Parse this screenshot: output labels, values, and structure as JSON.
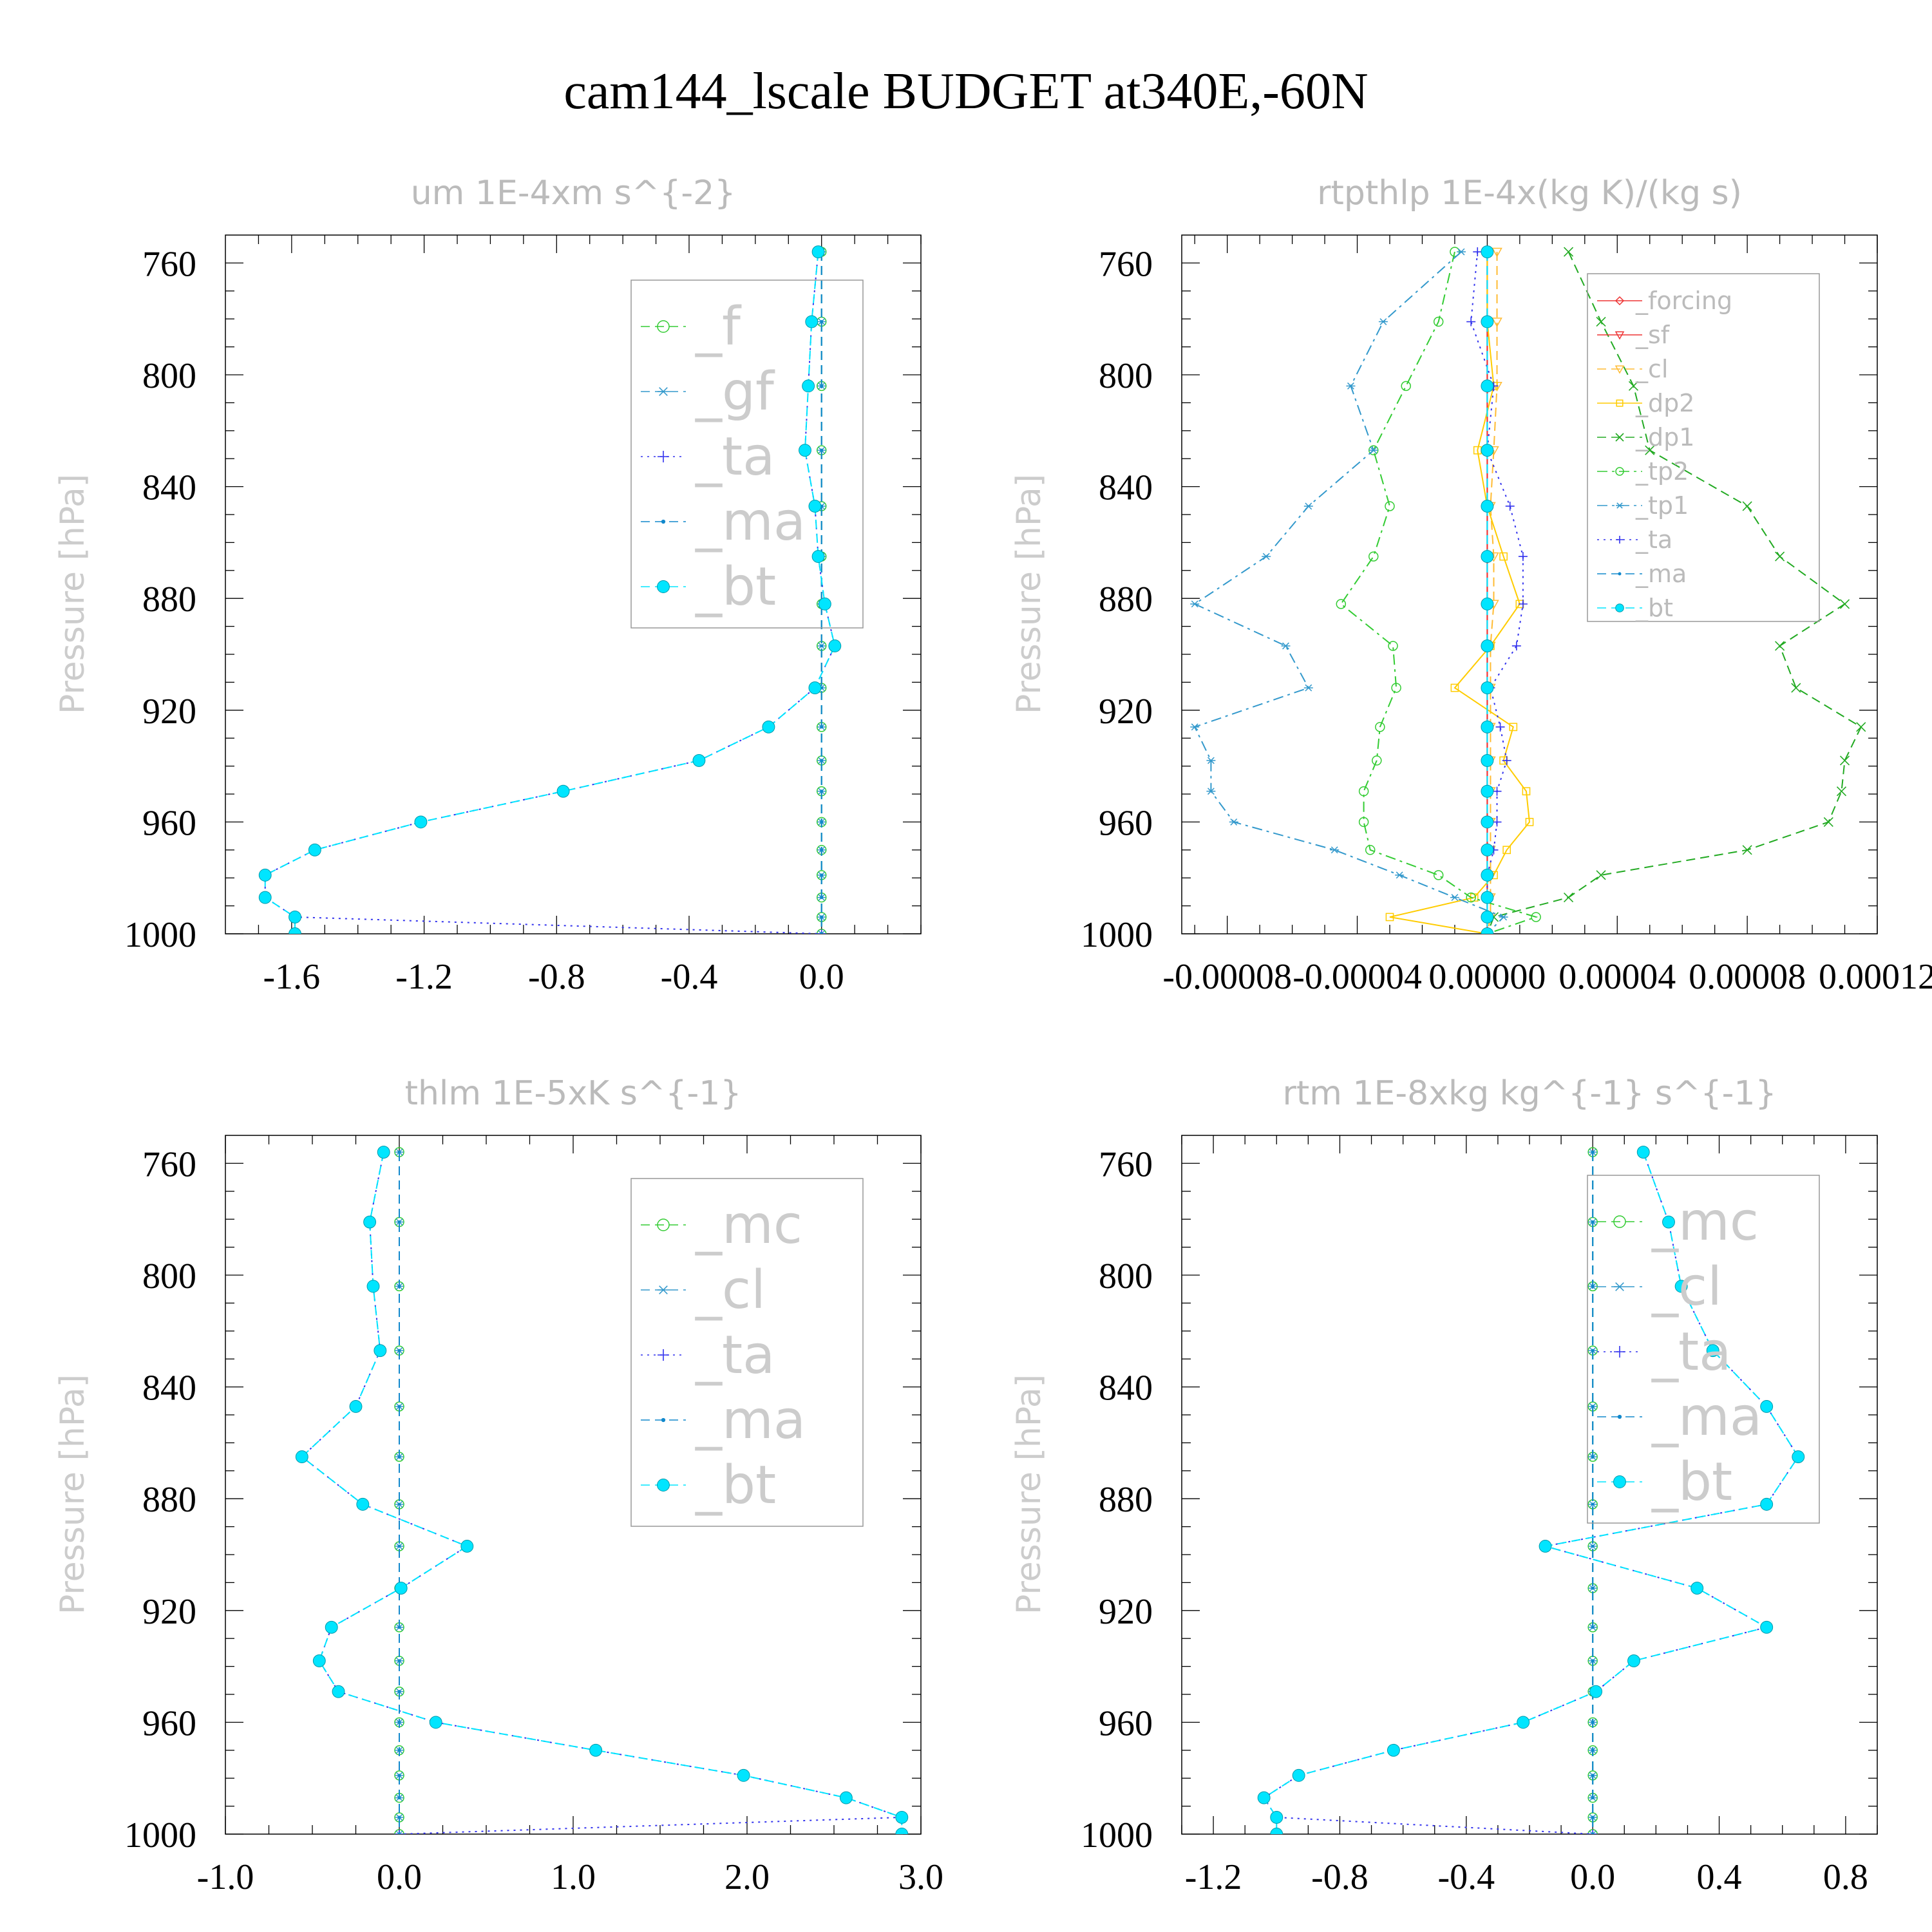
{
  "title": "cam144_lscale  BUDGET at340E,-60N",
  "colors": {
    "f": "#33cc33",
    "gf": "#3399cc",
    "ta": "#3333ee",
    "ma": "#1188cc",
    "bt": "#00e5ff",
    "mc": "#33cc33",
    "cl": "#3399cc",
    "forcing": "#ee3333",
    "sf": "#ee3333",
    "cl_r": "#ffbb33",
    "dp2": "#ffcc00",
    "dp1": "#22aa22",
    "tp2": "#33cc33",
    "tp1": "#3399cc"
  },
  "chart_data": [
    {
      "type": "line",
      "title": "um   1E-4xm s^{-2}",
      "ylabel": "Pressure [hPa]",
      "xlim": [
        -1.8,
        0.3
      ],
      "xticks": [
        "-1.6",
        "-1.2",
        "-0.8",
        "-0.4",
        "0.0"
      ],
      "xtick_values": [
        -1.6,
        -1.2,
        -0.8,
        -0.4,
        0.0
      ],
      "ylim": [
        1000,
        750
      ],
      "yticks": [
        "760",
        "800",
        "840",
        "880",
        "920",
        "960",
        "1000"
      ],
      "ytick_values": [
        760,
        800,
        840,
        880,
        920,
        960,
        1000
      ],
      "legend": [
        "_f",
        "_gf",
        "_ta",
        "_ma",
        "_bt"
      ],
      "legend_size": "large",
      "levels": [
        756,
        781,
        804,
        827,
        847,
        865,
        882,
        897,
        912,
        926,
        938,
        949,
        960,
        970,
        979,
        987,
        994,
        1000
      ],
      "series": [
        {
          "name": "_f",
          "marker": "circle",
          "style": "dashed",
          "values": [
            0,
            0,
            0,
            0,
            0,
            0,
            0,
            0,
            0,
            0,
            0,
            0,
            0,
            0,
            0,
            0,
            0,
            0
          ]
        },
        {
          "name": "_gf",
          "marker": "star",
          "style": "dashed",
          "values": [
            0,
            0,
            0,
            0,
            0,
            0,
            0,
            0,
            0,
            0,
            0,
            0,
            0,
            0,
            0,
            0,
            0,
            0
          ]
        },
        {
          "name": "_ta",
          "marker": "plus",
          "style": "dotted",
          "values": [
            -0.01,
            -0.03,
            -0.04,
            -0.05,
            -0.02,
            -0.01,
            0.01,
            0.04,
            -0.02,
            -0.16,
            -0.37,
            -0.78,
            -1.21,
            -1.53,
            -1.68,
            -1.68,
            -1.59,
            0.0
          ]
        },
        {
          "name": "_ma",
          "marker": "dot",
          "style": "dashed",
          "values": [
            0,
            0,
            0,
            0,
            0,
            0,
            0,
            0,
            0,
            0,
            0,
            0,
            0,
            0,
            0,
            0,
            0,
            0
          ]
        },
        {
          "name": "_bt",
          "marker": "filled",
          "style": "dashed",
          "values": [
            -0.01,
            -0.03,
            -0.04,
            -0.05,
            -0.02,
            -0.01,
            0.01,
            0.04,
            -0.02,
            -0.16,
            -0.37,
            -0.78,
            -1.21,
            -1.53,
            -1.68,
            -1.68,
            -1.59,
            -1.59
          ]
        }
      ]
    },
    {
      "type": "line",
      "title": "rtpthlp   1E-4x(kg K)/(kg s)",
      "ylabel": "Pressure [hPa]",
      "xlim": [
        -9.4e-05,
        0.00012
      ],
      "xticks": [
        "-0.00008",
        "-0.00004",
        "0.00000",
        "0.00004",
        "0.00008",
        "0.00012"
      ],
      "xtick_values": [
        -8e-05,
        -4e-05,
        0.0,
        4e-05,
        8e-05,
        0.00012
      ],
      "ylim": [
        1000,
        750
      ],
      "yticks": [
        "760",
        "800",
        "840",
        "880",
        "920",
        "960",
        "1000"
      ],
      "ytick_values": [
        760,
        800,
        840,
        880,
        920,
        960,
        1000
      ],
      "legend": [
        "_forcing",
        "_sf",
        "_cl",
        "_dp2",
        "_dp1",
        "_tp2",
        "_tp1",
        "_ta",
        "_ma",
        "_bt"
      ],
      "legend_size": "small",
      "levels": [
        756,
        781,
        804,
        827,
        847,
        865,
        882,
        897,
        912,
        926,
        938,
        949,
        960,
        970,
        979,
        987,
        994,
        1000
      ],
      "series": [
        {
          "name": "_forcing",
          "marker": "diamond",
          "style": "solid",
          "values": [
            0,
            0,
            0,
            0,
            0,
            0,
            0,
            0,
            0,
            0,
            0,
            0,
            0,
            0,
            0,
            0,
            0,
            0
          ]
        },
        {
          "name": "_sf",
          "marker": "triangle",
          "style": "solid",
          "values": [
            0,
            0,
            0,
            0,
            0,
            0,
            0,
            0,
            0,
            0,
            0,
            0,
            0,
            0,
            0,
            0,
            0,
            0
          ]
        },
        {
          "name": "_cl",
          "marker": "triangle",
          "style": "dashed",
          "values": [
            3e-06,
            3e-06,
            3e-06,
            2e-06,
            1e-06,
            2e-06,
            2e-06,
            1e-06,
            1e-06,
            1e-06,
            1e-06,
            1e-06,
            1e-06,
            1e-06,
            1e-06,
            1e-06,
            1e-06,
            0
          ]
        },
        {
          "name": "_dp2",
          "marker": "square",
          "style": "solid",
          "values": [
            0,
            0,
            2e-06,
            -3e-06,
            0,
            5e-06,
            1e-05,
            1e-06,
            -1e-05,
            8e-06,
            5e-06,
            1.2e-05,
            1.3e-05,
            6e-06,
            2e-06,
            -4e-06,
            -3e-05,
            0
          ]
        },
        {
          "name": "_dp1",
          "marker": "x",
          "style": "dashed",
          "values": [
            2.5e-05,
            3.5e-05,
            4.5e-05,
            5e-05,
            8e-05,
            9e-05,
            0.00011,
            9e-05,
            9.5e-05,
            0.000115,
            0.00011,
            0.000109,
            0.000105,
            8e-05,
            3.5e-05,
            2.5e-05,
            2e-06,
            0
          ]
        },
        {
          "name": "_tp2",
          "marker": "circle",
          "style": "dashdot",
          "values": [
            -1e-05,
            -1.5e-05,
            -2.5e-05,
            -3.5e-05,
            -3e-05,
            -3.5e-05,
            -4.5e-05,
            -2.9e-05,
            -2.8e-05,
            -3.3e-05,
            -3.4e-05,
            -3.8e-05,
            -3.8e-05,
            -3.6e-05,
            -1.5e-05,
            -5e-06,
            1.5e-05,
            0
          ]
        },
        {
          "name": "_tp1",
          "marker": "star",
          "style": "dashdot",
          "values": [
            -8e-06,
            -3.2e-05,
            -4.2e-05,
            -3.5e-05,
            -5.5e-05,
            -6.8e-05,
            -9e-05,
            -6.2e-05,
            -5.5e-05,
            -9e-05,
            -8.5e-05,
            -8.5e-05,
            -7.8e-05,
            -4.7e-05,
            -2.7e-05,
            -1e-05,
            5e-06,
            0
          ]
        },
        {
          "name": "_ta",
          "marker": "plus",
          "style": "dotted",
          "values": [
            -3e-06,
            -5e-06,
            2e-06,
            0.0,
            7e-06,
            1.1e-05,
            1.1e-05,
            9e-06,
            1e-06,
            4e-06,
            6e-06,
            3e-06,
            3e-06,
            2e-06,
            0.0,
            0.0,
            0.0,
            0
          ]
        },
        {
          "name": "_ma",
          "marker": "dot",
          "style": "dashed",
          "values": [
            0,
            0,
            0,
            0,
            0,
            0,
            0,
            0,
            0,
            0,
            0,
            0,
            0,
            0,
            0,
            0,
            0,
            0
          ]
        },
        {
          "name": "_bt",
          "marker": "filled",
          "style": "dashed",
          "values": [
            0,
            0,
            0,
            0,
            0,
            0,
            0,
            0,
            0,
            0,
            0,
            0,
            0,
            0,
            0,
            0,
            0,
            0
          ]
        }
      ]
    },
    {
      "type": "line",
      "title": "thlm   1E-5xK s^{-1}",
      "ylabel": "Pressure [hPa]",
      "xlim": [
        -1.0,
        3.0
      ],
      "xticks": [
        "-1.0",
        "0.0",
        "1.0",
        "2.0",
        "3.0"
      ],
      "xtick_values": [
        -1.0,
        0.0,
        1.0,
        2.0,
        3.0
      ],
      "ylim": [
        1000,
        750
      ],
      "yticks": [
        "760",
        "800",
        "840",
        "880",
        "920",
        "960",
        "1000"
      ],
      "ytick_values": [
        760,
        800,
        840,
        880,
        920,
        960,
        1000
      ],
      "legend": [
        "_mc",
        "_cl",
        "_ta",
        "_ma",
        "_bt"
      ],
      "legend_size": "large",
      "levels": [
        756,
        781,
        804,
        827,
        847,
        865,
        882,
        897,
        912,
        926,
        938,
        949,
        960,
        970,
        979,
        987,
        994,
        1000
      ],
      "series": [
        {
          "name": "_mc",
          "marker": "circle",
          "style": "dashed",
          "values": [
            0,
            0,
            0,
            0,
            0,
            0,
            0,
            0,
            0,
            0,
            0,
            0,
            0,
            0,
            0,
            0,
            0,
            0
          ]
        },
        {
          "name": "_cl",
          "marker": "star",
          "style": "dashed",
          "values": [
            0,
            0,
            0,
            0,
            0,
            0,
            0,
            0,
            0,
            0,
            0,
            0,
            0,
            0,
            0,
            0,
            0,
            0
          ]
        },
        {
          "name": "_ta",
          "marker": "plus",
          "style": "dotted",
          "values": [
            -0.09,
            -0.17,
            -0.15,
            -0.11,
            -0.25,
            -0.56,
            -0.21,
            0.39,
            0.01,
            -0.39,
            -0.46,
            -0.35,
            0.21,
            1.13,
            1.98,
            2.57,
            2.89,
            0.0
          ]
        },
        {
          "name": "_ma",
          "marker": "dot",
          "style": "dashed",
          "values": [
            0,
            0,
            0,
            0,
            0,
            0,
            0,
            0,
            0,
            0,
            0,
            0,
            0,
            0,
            0,
            0,
            0,
            0
          ]
        },
        {
          "name": "_bt",
          "marker": "filled",
          "style": "dashed",
          "values": [
            -0.09,
            -0.17,
            -0.15,
            -0.11,
            -0.25,
            -0.56,
            -0.21,
            0.39,
            0.01,
            -0.39,
            -0.46,
            -0.35,
            0.21,
            1.13,
            1.98,
            2.57,
            2.89,
            2.89
          ]
        }
      ]
    },
    {
      "type": "line",
      "title": "rtm   1E-8xkg kg^{-1} s^{-1}",
      "ylabel": "Pressure [hPa]",
      "xlim": [
        -1.3,
        0.9
      ],
      "xticks": [
        "-1.2",
        "-0.8",
        "-0.4",
        "0.0",
        "0.4",
        "0.8"
      ],
      "xtick_values": [
        -1.2,
        -0.8,
        -0.4,
        0.0,
        0.4,
        0.8
      ],
      "ylim": [
        1000,
        750
      ],
      "yticks": [
        "760",
        "800",
        "840",
        "880",
        "920",
        "960",
        "1000"
      ],
      "ytick_values": [
        760,
        800,
        840,
        880,
        920,
        960,
        1000
      ],
      "legend": [
        "_mc",
        "_cl",
        "_ta",
        "_ma",
        "_bt"
      ],
      "legend_size": "large",
      "levels": [
        756,
        781,
        804,
        827,
        847,
        865,
        882,
        897,
        912,
        926,
        938,
        949,
        960,
        970,
        979,
        987,
        994,
        1000
      ],
      "series": [
        {
          "name": "_mc",
          "marker": "circle",
          "style": "dashed",
          "values": [
            0,
            0,
            0,
            0,
            0,
            0,
            0,
            0,
            0,
            0,
            0,
            0,
            0,
            0,
            0,
            0,
            0,
            0
          ]
        },
        {
          "name": "_cl",
          "marker": "star",
          "style": "dashed",
          "values": [
            0,
            0,
            0,
            0,
            0,
            0,
            0,
            0,
            0,
            0,
            0,
            0,
            0,
            0,
            0,
            0,
            0,
            0
          ]
        },
        {
          "name": "_ta",
          "marker": "plus",
          "style": "dotted",
          "values": [
            0.16,
            0.24,
            0.28,
            0.38,
            0.55,
            0.65,
            0.55,
            -0.15,
            0.33,
            0.55,
            0.13,
            0.01,
            -0.22,
            -0.63,
            -0.93,
            -1.04,
            -1.0,
            0.0
          ]
        },
        {
          "name": "_ma",
          "marker": "dot",
          "style": "dashed",
          "values": [
            0,
            0,
            0,
            0,
            0,
            0,
            0,
            0,
            0,
            0,
            0,
            0,
            0,
            0,
            0,
            0,
            0,
            0
          ]
        },
        {
          "name": "_bt",
          "marker": "filled",
          "style": "dashed",
          "values": [
            0.16,
            0.24,
            0.28,
            0.38,
            0.55,
            0.65,
            0.55,
            -0.15,
            0.33,
            0.55,
            0.13,
            0.01,
            -0.22,
            -0.63,
            -0.93,
            -1.04,
            -1.0,
            -1.0
          ]
        }
      ]
    }
  ]
}
